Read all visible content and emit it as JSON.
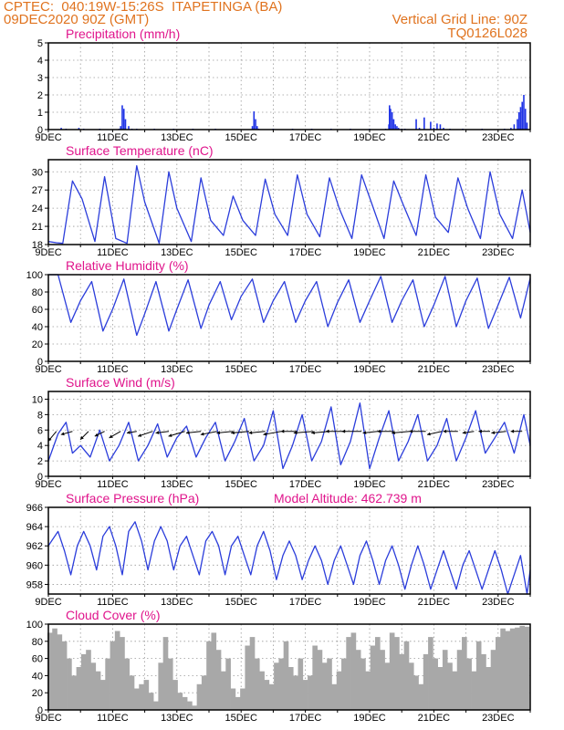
{
  "header": {
    "line1_left": "CPTEC:  040:19W-15:26S  ITAPETINGA (BA)",
    "line2_left": "09DEC2020 90Z (GMT)",
    "line1_right": "Vertical Grid Line: 90Z",
    "line2_right": "TQ0126L028"
  },
  "colors": {
    "header": "#e0731f",
    "title": "#e0158c",
    "line": "#2b3ddb",
    "bar": "#1f33e6",
    "cloud": "#a8a8a8",
    "wind": "#000000"
  },
  "chart_data": [
    {
      "id": "precipitation",
      "type": "bar",
      "title": "Precipitation (mm/h)",
      "ylim": [
        0,
        5
      ],
      "yticks": [
        0,
        1,
        2,
        3,
        4,
        5
      ],
      "xlim_days": [
        0,
        15
      ],
      "xtick_labels": [
        "9DEC",
        "11DEC",
        "13DEC",
        "15DEC",
        "17DEC",
        "19DEC",
        "21DEC",
        "23DEC"
      ],
      "series": [
        {
          "x_days": [
            0.4,
            0.55,
            0.95,
            1.1,
            1.6,
            2.2,
            2.25,
            2.3,
            2.35,
            2.4,
            2.5,
            2.6,
            2.75,
            3.3,
            3.9,
            4.5,
            5.2,
            6.35,
            6.4,
            6.45,
            6.5,
            6.55,
            7.0,
            7.6,
            8.2,
            8.8,
            9.4,
            10.0,
            10.5,
            10.6,
            10.62,
            10.65,
            10.7,
            10.75,
            10.8,
            10.85,
            10.9,
            11.0,
            11.1,
            11.45,
            11.55,
            11.7,
            11.9,
            12.0,
            12.1,
            12.2,
            12.3,
            12.5,
            12.9,
            13.5,
            14.2,
            14.4,
            14.5,
            14.6,
            14.65,
            14.7,
            14.75,
            14.8,
            14.85,
            14.9
          ],
          "y": [
            0.1,
            0.05,
            0.1,
            0.05,
            0.05,
            0.05,
            0.2,
            1.4,
            1.2,
            0.6,
            0.2,
            0.05,
            0.05,
            0.05,
            0.05,
            0.05,
            0.05,
            0.2,
            1.05,
            0.6,
            0.2,
            0.05,
            0.05,
            0.05,
            0.05,
            0.05,
            0.05,
            0.05,
            0.05,
            0.3,
            1.4,
            1.2,
            1.0,
            0.6,
            0.3,
            0.2,
            0.1,
            0.05,
            0.05,
            0.6,
            0.1,
            0.7,
            0.45,
            0.1,
            0.35,
            0.3,
            0.1,
            0.05,
            0.05,
            0.05,
            0.05,
            0.1,
            0.3,
            0.6,
            1.0,
            1.3,
            1.6,
            2.0,
            1.2,
            0.4
          ]
        }
      ]
    },
    {
      "id": "surface-temperature",
      "type": "line",
      "title": "Surface Temperature (nC)",
      "ylim": [
        18,
        32
      ],
      "yticks": [
        18,
        21,
        24,
        27,
        30
      ],
      "xlim_days": [
        0,
        15
      ],
      "xtick_labels": [
        "9DEC",
        "11DEC",
        "13DEC",
        "15DEC",
        "17DEC",
        "19DEC",
        "21DEC",
        "23DEC"
      ],
      "series": [
        {
          "x_days": [
            0,
            0.25,
            0.45,
            0.75,
            1.05,
            1.45,
            1.75,
            2.1,
            2.45,
            2.75,
            3.0,
            3.45,
            3.75,
            4.0,
            4.45,
            4.75,
            5.05,
            5.45,
            5.75,
            6.05,
            6.45,
            6.75,
            7.05,
            7.45,
            7.75,
            8.05,
            8.45,
            8.75,
            9.05,
            9.45,
            9.75,
            10.05,
            10.45,
            10.75,
            11.05,
            11.45,
            11.75,
            12.05,
            12.45,
            12.75,
            13.05,
            13.45,
            13.75,
            14.05,
            14.45,
            14.75,
            15.0
          ],
          "y": [
            18.5,
            18.3,
            18.2,
            28.5,
            25.5,
            18.5,
            29.2,
            19.0,
            18.2,
            31.0,
            25.0,
            18.2,
            30.0,
            24.0,
            18.5,
            29.0,
            22.0,
            19.5,
            26.0,
            22.0,
            19.5,
            28.8,
            23.0,
            19.5,
            29.5,
            23.0,
            19.3,
            29.0,
            24.0,
            19.0,
            29.5,
            25.0,
            19.0,
            28.5,
            24.5,
            19.5,
            29.5,
            22.5,
            20.0,
            29.0,
            24.0,
            19.0,
            30.0,
            23.0,
            19.0,
            27.0,
            20.0
          ]
        }
      ]
    },
    {
      "id": "relative-humidity",
      "type": "line",
      "title": "Relative Humidity (%)",
      "ylim": [
        0,
        100
      ],
      "yticks": [
        0,
        20,
        40,
        60,
        80,
        100
      ],
      "xlim_days": [
        0,
        15
      ],
      "xtick_labels": [
        "9DEC",
        "11DEC",
        "13DEC",
        "15DEC",
        "17DEC",
        "19DEC",
        "21DEC",
        "23DEC"
      ],
      "series": [
        {
          "x_days": [
            0,
            0.3,
            0.7,
            1.0,
            1.35,
            1.7,
            2.0,
            2.35,
            2.75,
            3.0,
            3.35,
            3.75,
            4.0,
            4.35,
            4.75,
            5.0,
            5.35,
            5.7,
            6.0,
            6.35,
            6.7,
            7.0,
            7.35,
            7.7,
            8.0,
            8.35,
            8.7,
            9.0,
            9.35,
            9.7,
            10.0,
            10.35,
            10.7,
            11.0,
            11.35,
            11.7,
            12.0,
            12.35,
            12.7,
            13.0,
            13.35,
            13.7,
            14.0,
            14.35,
            14.7,
            15.0
          ],
          "y": [
            100,
            100,
            45,
            70,
            92,
            35,
            60,
            95,
            30,
            55,
            92,
            35,
            60,
            94,
            38,
            65,
            92,
            48,
            75,
            95,
            45,
            70,
            92,
            45,
            70,
            92,
            40,
            68,
            94,
            45,
            70,
            98,
            45,
            70,
            94,
            40,
            65,
            98,
            40,
            70,
            96,
            38,
            65,
            97,
            50,
            96
          ]
        }
      ]
    },
    {
      "id": "surface-wind",
      "type": "line",
      "title": "Surface Wind (m/s)",
      "ylim": [
        0,
        11
      ],
      "yticks": [
        0,
        2,
        4,
        6,
        8,
        10
      ],
      "xlim_days": [
        0,
        15
      ],
      "xtick_labels": [
        "9DEC",
        "11DEC",
        "13DEC",
        "15DEC",
        "17DEC",
        "19DEC",
        "21DEC",
        "23DEC"
      ],
      "series": [
        {
          "x_days": [
            0,
            0.3,
            0.55,
            0.75,
            1.0,
            1.3,
            1.6,
            1.9,
            2.2,
            2.5,
            2.8,
            3.1,
            3.4,
            3.7,
            4.0,
            4.3,
            4.6,
            4.9,
            5.2,
            5.5,
            5.8,
            6.1,
            6.4,
            6.7,
            7.0,
            7.3,
            7.6,
            7.9,
            8.2,
            8.5,
            8.8,
            9.1,
            9.4,
            9.7,
            10.0,
            10.3,
            10.6,
            10.9,
            11.2,
            11.5,
            11.8,
            12.1,
            12.4,
            12.7,
            13.0,
            13.3,
            13.6,
            13.9,
            14.2,
            14.5,
            14.8,
            15.0
          ],
          "y": [
            2.0,
            5.5,
            7.0,
            3.0,
            4.0,
            2.5,
            6.0,
            2.0,
            4.0,
            7.0,
            2.0,
            4.0,
            6.8,
            2.5,
            5.0,
            6.5,
            2.5,
            5.0,
            7.0,
            2.0,
            4.5,
            7.5,
            2.0,
            4.0,
            8.5,
            1.0,
            4.0,
            8.0,
            2.0,
            4.5,
            9.0,
            1.5,
            4.5,
            9.5,
            1.0,
            5.0,
            8.5,
            2.0,
            4.5,
            8.0,
            2.0,
            4.0,
            7.5,
            2.0,
            5.0,
            8.5,
            3.0,
            5.0,
            7.0,
            3.0,
            8.0,
            4.0
          ]
        }
      ],
      "wind_vectors": {
        "x_days": [
          0.25,
          0.75,
          1.25,
          1.75,
          2.25,
          2.75,
          3.25,
          3.75,
          4.25,
          4.75,
          5.25,
          5.75,
          6.25,
          6.75,
          7.25,
          7.75,
          8.25,
          8.75,
          9.25,
          9.75,
          10.25,
          10.75,
          11.25,
          11.75,
          12.25,
          12.75,
          13.25,
          13.75,
          14.25,
          14.75
        ],
        "u": [
          -2.5,
          -3.5,
          -2.5,
          -3.0,
          -3.5,
          -3.0,
          -4.5,
          -4.0,
          -5.0,
          -4.5,
          -5.0,
          -5.0,
          -5.5,
          -5.0,
          -5.5,
          -5.0,
          -6.0,
          -5.5,
          -6.0,
          -6.0,
          -4.5,
          -5.0,
          -5.5,
          -5.0,
          -4.5,
          -4.5,
          -3.5,
          -3.5,
          -4.5,
          -3.5
        ],
        "v": [
          -3.0,
          -1.0,
          -2.5,
          -1.5,
          -2.0,
          -0.5,
          -1.5,
          -0.5,
          -1.5,
          -0.5,
          -1.0,
          -0.5,
          -0.5,
          -0.5,
          -1.0,
          0.0,
          -0.5,
          -0.5,
          0.0,
          0.0,
          -0.5,
          0.0,
          -0.5,
          0.0,
          -1.0,
          0.0,
          -0.5,
          0.0,
          -0.5,
          0.0
        ]
      }
    },
    {
      "id": "surface-pressure",
      "type": "line",
      "title": "Surface Pressure (hPa)",
      "annotation": "Model Altitude: 462.739 m",
      "ylim": [
        957,
        966
      ],
      "yticks": [
        958,
        960,
        962,
        964,
        966
      ],
      "xlim_days": [
        0,
        15
      ],
      "xtick_labels": [
        "9DEC",
        "11DEC",
        "13DEC",
        "15DEC",
        "17DEC",
        "19DEC",
        "21DEC",
        "23DEC"
      ],
      "series": [
        {
          "x_days": [
            0,
            0.1,
            0.3,
            0.5,
            0.7,
            0.9,
            1.1,
            1.3,
            1.5,
            1.7,
            1.9,
            2.1,
            2.3,
            2.5,
            2.7,
            2.9,
            3.1,
            3.3,
            3.5,
            3.7,
            3.9,
            4.1,
            4.3,
            4.5,
            4.7,
            4.9,
            5.1,
            5.3,
            5.5,
            5.7,
            5.9,
            6.1,
            6.3,
            6.5,
            6.7,
            6.9,
            7.1,
            7.3,
            7.5,
            7.7,
            7.9,
            8.1,
            8.3,
            8.5,
            8.7,
            8.9,
            9.1,
            9.3,
            9.5,
            9.7,
            9.9,
            10.1,
            10.3,
            10.5,
            10.7,
            10.9,
            11.1,
            11.3,
            11.5,
            11.7,
            11.9,
            12.1,
            12.3,
            12.5,
            12.7,
            12.9,
            13.1,
            13.3,
            13.5,
            13.7,
            13.9,
            14.1,
            14.3,
            14.5,
            14.7,
            14.9,
            15.0
          ],
          "y": [
            962.0,
            962.5,
            963.5,
            961.5,
            959.0,
            962.0,
            963.5,
            962.0,
            959.5,
            963.0,
            964.0,
            962.0,
            959.0,
            963.5,
            964.5,
            962.5,
            959.5,
            962.5,
            964.0,
            962.5,
            959.5,
            962.0,
            963.0,
            961.0,
            959.0,
            962.5,
            963.5,
            962.0,
            959.0,
            962.0,
            963.0,
            961.0,
            959.0,
            962.0,
            963.5,
            961.5,
            958.5,
            961.0,
            962.5,
            961.0,
            958.5,
            960.5,
            962.0,
            960.5,
            958.0,
            960.5,
            962.0,
            960.0,
            958.0,
            961.0,
            962.5,
            960.5,
            958.0,
            960.5,
            962.0,
            960.0,
            957.5,
            960.0,
            962.0,
            960.0,
            957.5,
            959.5,
            961.5,
            959.5,
            957.5,
            960.0,
            961.5,
            959.5,
            957.5,
            959.5,
            961.5,
            959.5,
            957.0,
            959.0,
            961.0,
            957.0,
            959.5
          ]
        }
      ]
    },
    {
      "id": "cloud-cover",
      "type": "bar",
      "title": "Cloud Cover (%)",
      "ylim": [
        0,
        100
      ],
      "yticks": [
        0,
        20,
        40,
        60,
        80,
        100
      ],
      "xlim_days": [
        0,
        15
      ],
      "xtick_labels": [
        "9DEC",
        "11DEC",
        "13DEC",
        "15DEC",
        "17DEC",
        "19DEC",
        "21DEC",
        "23DEC"
      ],
      "series": [
        {
          "x_days": [
            0.05,
            0.2,
            0.35,
            0.5,
            0.65,
            0.8,
            0.95,
            1.1,
            1.25,
            1.4,
            1.55,
            1.7,
            1.85,
            2.0,
            2.15,
            2.3,
            2.45,
            2.6,
            2.75,
            2.9,
            3.05,
            3.2,
            3.35,
            3.5,
            3.65,
            3.8,
            3.95,
            4.1,
            4.25,
            4.4,
            4.55,
            4.7,
            4.85,
            5.0,
            5.15,
            5.3,
            5.45,
            5.6,
            5.75,
            5.9,
            6.05,
            6.2,
            6.35,
            6.5,
            6.65,
            6.8,
            6.95,
            7.1,
            7.25,
            7.4,
            7.55,
            7.7,
            7.85,
            8.0,
            8.15,
            8.3,
            8.45,
            8.6,
            8.75,
            8.9,
            9.05,
            9.2,
            9.35,
            9.5,
            9.65,
            9.8,
            9.95,
            10.1,
            10.25,
            10.4,
            10.55,
            10.7,
            10.85,
            11.0,
            11.15,
            11.3,
            11.45,
            11.6,
            11.75,
            11.9,
            12.05,
            12.2,
            12.35,
            12.5,
            12.65,
            12.8,
            12.95,
            13.1,
            13.25,
            13.4,
            13.55,
            13.7,
            13.85,
            14.0,
            14.15,
            14.3,
            14.45,
            14.6,
            14.75,
            14.9
          ],
          "values": [
            90,
            95,
            88,
            80,
            60,
            40,
            50,
            65,
            70,
            55,
            45,
            35,
            60,
            80,
            92,
            85,
            60,
            40,
            25,
            30,
            35,
            20,
            10,
            55,
            85,
            60,
            35,
            20,
            15,
            10,
            5,
            30,
            40,
            80,
            90,
            70,
            45,
            60,
            25,
            15,
            25,
            75,
            85,
            60,
            45,
            35,
            30,
            55,
            60,
            80,
            50,
            40,
            60,
            35,
            40,
            75,
            70,
            55,
            60,
            30,
            45,
            60,
            85,
            90,
            70,
            60,
            45,
            75,
            85,
            70,
            55,
            90,
            85,
            65,
            80,
            55,
            40,
            30,
            65,
            85,
            60,
            50,
            70,
            55,
            45,
            70,
            85,
            60,
            45,
            80,
            65,
            50,
            70,
            85,
            95,
            92,
            95,
            96,
            98,
            97
          ]
        }
      ]
    }
  ]
}
